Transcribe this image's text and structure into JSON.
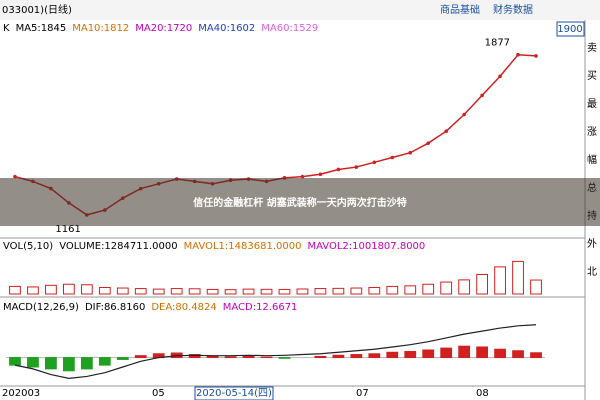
{
  "window_title": "033001)(日线)",
  "tabs": [
    "商品基础",
    "财务数据"
  ],
  "price_box": "1900",
  "sidebar": [
    "卖",
    "买",
    "最",
    "涨",
    "幅",
    "总",
    "持",
    "外",
    "北"
  ],
  "headline": "信任的金融杠杆 胡塞武装称一天内两次打击沙特",
  "axis_dates": [
    "202003",
    "05",
    "07",
    "08"
  ],
  "cursor_date": "2020-05-14(四)",
  "chart_data": [
    {
      "type": "line",
      "color": "#d02020",
      "legend_texts": [
        "K",
        "MA5:1845",
        "MA10:1812",
        "MA20:1720",
        "MA40:1602",
        "MA60:1529"
      ],
      "legend_colors": [
        "#000000",
        "#000000",
        "#d07000",
        "#c000c0",
        "#2040c0",
        "#e060e0"
      ],
      "annotations": [
        "1877",
        "1161"
      ],
      "values": [
        1340,
        1320,
        1290,
        1230,
        1180,
        1200,
        1250,
        1290,
        1310,
        1330,
        1320,
        1310,
        1325,
        1330,
        1320,
        1335,
        1340,
        1350,
        1370,
        1380,
        1400,
        1420,
        1440,
        1480,
        1530,
        1600,
        1680,
        1760,
        1850,
        1845
      ],
      "ylim": [
        1100,
        1920
      ]
    },
    {
      "type": "bar",
      "color": "#d02020",
      "legend_texts": [
        "VOL(5,10)",
        "VOLUME:1284711.0000",
        "MAVOL1:1483681.0000",
        "MAVOL2:1001807.8000"
      ],
      "legend_colors": [
        "#000000",
        "#000000",
        "#d07000",
        "#c000c0"
      ],
      "values": [
        700000,
        650000,
        800000,
        900000,
        850000,
        600000,
        550000,
        500000,
        450000,
        500000,
        480000,
        420000,
        400000,
        450000,
        430000,
        420000,
        460000,
        500000,
        520000,
        550000,
        600000,
        700000,
        750000,
        900000,
        1100000,
        1300000,
        1800000,
        2500000,
        3000000,
        1284711
      ],
      "ylim": [
        0,
        3500000
      ]
    },
    {
      "type": "bar",
      "color": "#d02020",
      "negative_color": "#20a020",
      "legend_texts": [
        "MACD(12,26,9)",
        "DIF:86.8160",
        "DEA:80.4824",
        "MACD:12.6671"
      ],
      "legend_colors": [
        "#000000",
        "#000000",
        "#d07000",
        "#c000c0"
      ],
      "values": [
        -20,
        -25,
        -30,
        -35,
        -30,
        -20,
        -5,
        5,
        10,
        12,
        8,
        4,
        2,
        3,
        1,
        -2,
        0,
        3,
        6,
        8,
        10,
        14,
        16,
        20,
        25,
        30,
        28,
        22,
        18,
        12.6671
      ],
      "line": [
        -20,
        -30,
        -45,
        -55,
        -50,
        -40,
        -25,
        -10,
        0,
        5,
        6,
        5,
        5,
        6,
        5,
        6,
        8,
        10,
        14,
        18,
        22,
        28,
        34,
        42,
        52,
        62,
        70,
        78,
        84,
        86.816
      ],
      "ylim": [
        -70,
        110
      ]
    }
  ]
}
